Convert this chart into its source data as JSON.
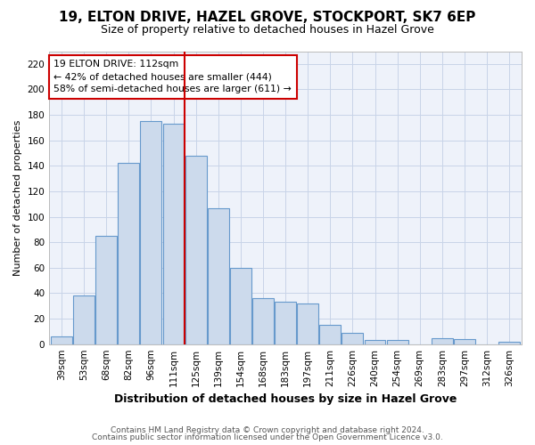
{
  "title1": "19, ELTON DRIVE, HAZEL GROVE, STOCKPORT, SK7 6EP",
  "title2": "Size of property relative to detached houses in Hazel Grove",
  "xlabel": "Distribution of detached houses by size in Hazel Grove",
  "ylabel": "Number of detached properties",
  "footer1": "Contains HM Land Registry data © Crown copyright and database right 2024.",
  "footer2": "Contains public sector information licensed under the Open Government Licence v3.0.",
  "categories": [
    "39sqm",
    "53sqm",
    "68sqm",
    "82sqm",
    "96sqm",
    "111sqm",
    "125sqm",
    "139sqm",
    "154sqm",
    "168sqm",
    "183sqm",
    "197sqm",
    "211sqm",
    "226sqm",
    "240sqm",
    "254sqm",
    "269sqm",
    "283sqm",
    "297sqm",
    "312sqm",
    "326sqm"
  ],
  "values": [
    6,
    38,
    85,
    142,
    175,
    173,
    148,
    107,
    60,
    36,
    33,
    32,
    15,
    9,
    3,
    3,
    0,
    5,
    4,
    0,
    2
  ],
  "bar_color": "#ccdaec",
  "bar_edge_color": "#6699cc",
  "vline_x": 5.5,
  "vline_color": "#cc0000",
  "annotation_line1": "19 ELTON DRIVE: 112sqm",
  "annotation_line2": "← 42% of detached houses are smaller (444)",
  "annotation_line3": "58% of semi-detached houses are larger (611) →",
  "annotation_box_color": "#cc0000",
  "ylim": [
    0,
    230
  ],
  "yticks": [
    0,
    20,
    40,
    60,
    80,
    100,
    120,
    140,
    160,
    180,
    200,
    220
  ],
  "grid_color": "#c8d4e8",
  "background_color": "#eef2fa",
  "title1_fontsize": 11,
  "title2_fontsize": 9,
  "xlabel_fontsize": 9,
  "ylabel_fontsize": 8,
  "tick_fontsize": 7.5,
  "footer_fontsize": 6.5
}
